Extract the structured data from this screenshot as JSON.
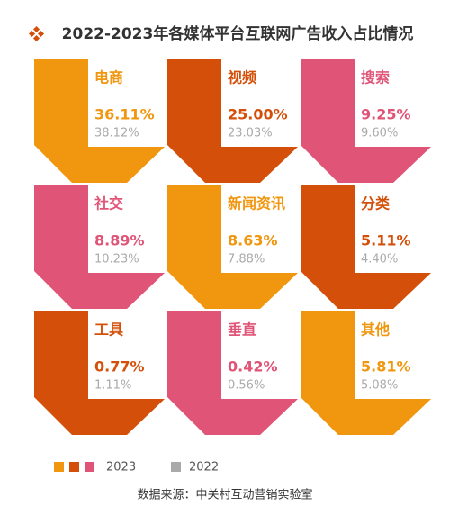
{
  "chart_data": {
    "type": "tiles",
    "title": "2022-2023年各媒体平台互联网广告收入占比情况",
    "categories": [
      "电商",
      "视频",
      "搜索",
      "社交",
      "新闻资讯",
      "分类",
      "工具",
      "垂直",
      "其他"
    ],
    "series": [
      {
        "name": "2023",
        "colors": [
          "#f0960f",
          "#d4500a",
          "#e05577",
          "#e05577",
          "#f0960f",
          "#d4500a",
          "#d4500a",
          "#e05577",
          "#f0960f"
        ],
        "values": [
          36.11,
          25.0,
          9.25,
          8.89,
          8.63,
          5.11,
          0.77,
          0.42,
          5.81
        ],
        "value_labels": [
          "36.11%",
          "25.00%",
          "9.25%",
          "8.89%",
          "8.63%",
          "5.11%",
          "0.77%",
          "0.42%",
          "5.81%"
        ]
      },
      {
        "name": "2022",
        "color": "#aaaaaa",
        "values": [
          38.12,
          23.03,
          9.6,
          10.23,
          7.88,
          4.4,
          1.11,
          0.56,
          5.08
        ],
        "value_labels": [
          "38.12%",
          "23.03%",
          "9.60%",
          "10.23%",
          "7.88%",
          "4.40%",
          "1.11%",
          "0.56%",
          "5.08%"
        ]
      }
    ],
    "source": "数据来源：中关村互动营销实验室"
  }
}
